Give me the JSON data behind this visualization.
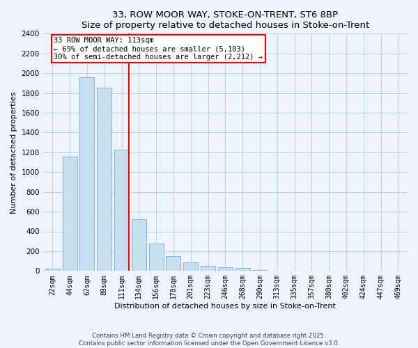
{
  "title": "33, ROW MOOR WAY, STOKE-ON-TRENT, ST6 8BP",
  "subtitle": "Size of property relative to detached houses in Stoke-on-Trent",
  "xlabel": "Distribution of detached houses by size in Stoke-on-Trent",
  "ylabel": "Number of detached properties",
  "bar_labels": [
    "22sqm",
    "44sqm",
    "67sqm",
    "89sqm",
    "111sqm",
    "134sqm",
    "156sqm",
    "178sqm",
    "201sqm",
    "223sqm",
    "246sqm",
    "268sqm",
    "290sqm",
    "313sqm",
    "335sqm",
    "357sqm",
    "380sqm",
    "402sqm",
    "424sqm",
    "447sqm",
    "469sqm"
  ],
  "bar_values": [
    25,
    1160,
    1960,
    1850,
    1230,
    520,
    275,
    150,
    85,
    50,
    35,
    30,
    10,
    5,
    2,
    2,
    1,
    1,
    0,
    0,
    0
  ],
  "bar_color": "#c5dff0",
  "bar_edge_color": "#8ab4d4",
  "property_line_color": "red",
  "annotation_title": "33 ROW MOOR WAY: 113sqm",
  "annotation_line1": "← 69% of detached houses are smaller (5,103)",
  "annotation_line2": "30% of semi-detached houses are larger (2,212) →",
  "annotation_box_color": "white",
  "annotation_box_edge": "red",
  "ylim": [
    0,
    2400
  ],
  "yticks": [
    0,
    200,
    400,
    600,
    800,
    1000,
    1200,
    1400,
    1600,
    1800,
    2000,
    2200,
    2400
  ],
  "footer_line1": "Contains HM Land Registry data © Crown copyright and database right 2025.",
  "footer_line2": "Contains public sector information licensed under the Open Government Licence v3.0.",
  "background_color": "#eef2fb",
  "grid_color": "#c0cce0"
}
